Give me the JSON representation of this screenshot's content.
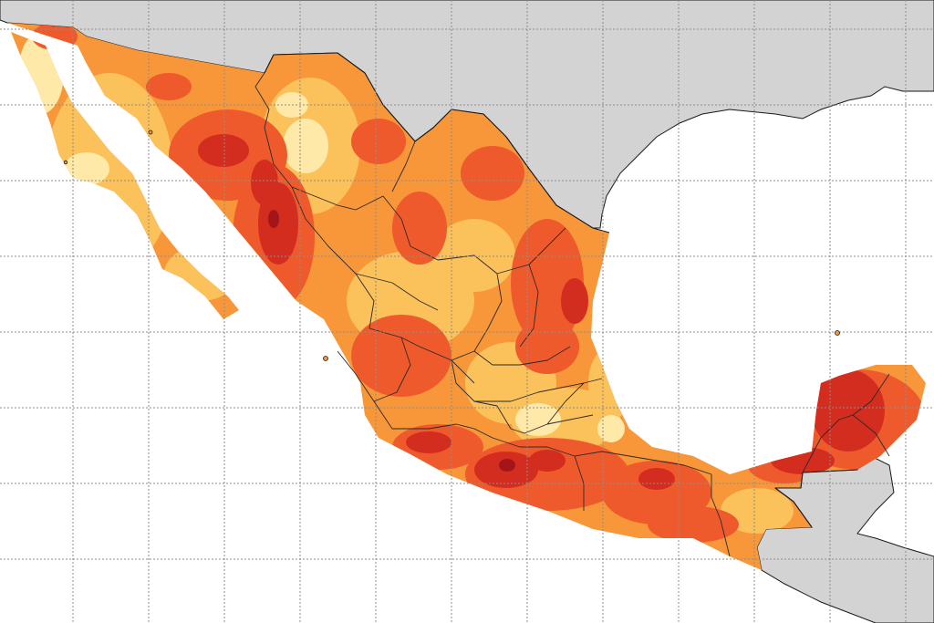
{
  "map": {
    "palette": {
      "ocean": "#ffffff",
      "land_outside": "#d3d3d3",
      "very_low": "#ffe9a8",
      "low": "#fbc15a",
      "moderate": "#f7973a",
      "high": "#ee5a2c",
      "very_high": "#d32d20",
      "extreme": "#a51518",
      "border": "#2a2a2a",
      "grid": "#8c8c8c"
    },
    "layers": [
      "heat-intensity-fill",
      "state-borders",
      "lat-lon-grid",
      "neighbor-land"
    ],
    "legend_shown": false,
    "labels_shown": false
  }
}
